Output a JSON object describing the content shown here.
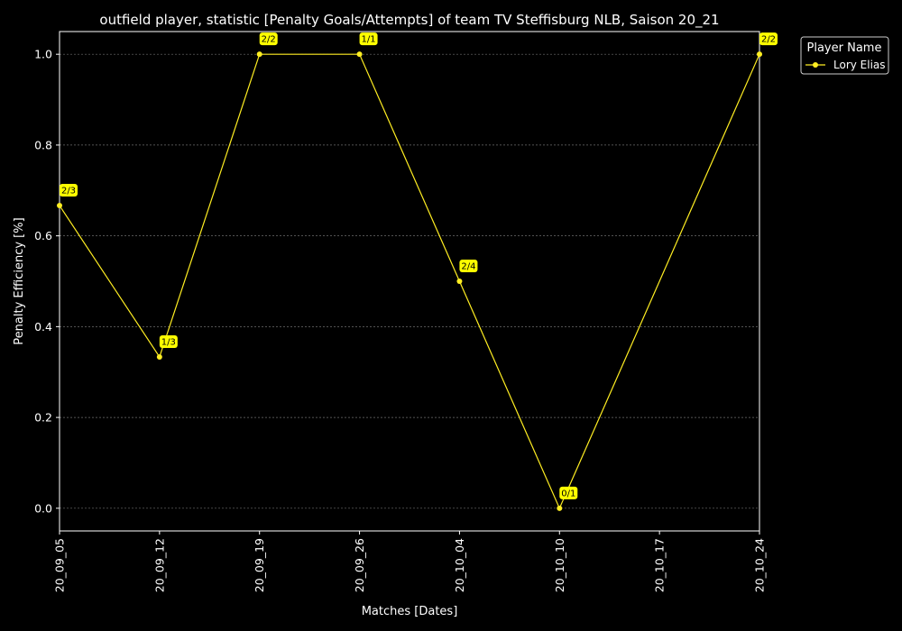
{
  "chart_data": {
    "type": "line",
    "title": "outfield player, statistic [Penalty Goals/Attempts] of team TV Steffisburg NLB, Saison 20_21",
    "xlabel": "Matches [Dates]",
    "ylabel": "Penalty Efficiency [%]",
    "categories": [
      "20_09_05",
      "20_09_12",
      "20_09_19",
      "20_09_26",
      "20_10_04",
      "20_10_10",
      "20_10_17",
      "20_10_24"
    ],
    "yticks": [
      "0.0",
      "0.2",
      "0.4",
      "0.6",
      "0.8",
      "1.0"
    ],
    "ylim": [
      -0.05,
      1.05
    ],
    "grid": true,
    "legend_title": "Player Name",
    "legend_position": "outside-top-right",
    "series": [
      {
        "name": "Lory Elias",
        "color": "#ffee22",
        "points": [
          {
            "x": "20_09_05",
            "y": 0.6667,
            "label": "2/3"
          },
          {
            "x": "20_09_12",
            "y": 0.3333,
            "label": "1/3"
          },
          {
            "x": "20_09_19",
            "y": 1.0,
            "label": "2/2"
          },
          {
            "x": "20_09_26",
            "y": 1.0,
            "label": "1/1"
          },
          {
            "x": "20_10_04",
            "y": 0.5,
            "label": "2/4"
          },
          {
            "x": "20_10_10",
            "y": 0.0,
            "label": "0/1"
          },
          {
            "x": "20_10_24",
            "y": 1.0,
            "label": "2/2"
          }
        ]
      }
    ],
    "colors": {
      "background": "#000000",
      "axis": "#ffffff",
      "grid": "#6e6e6e",
      "label_box": "#ffff00"
    }
  }
}
